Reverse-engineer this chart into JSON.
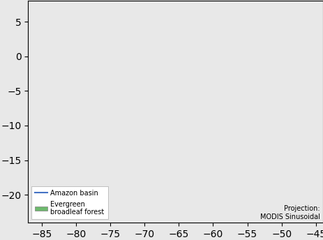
{
  "projection_label": "Projection:\nMODIS Sinusoidal",
  "background_color": "#e8e8e8",
  "land_color": "#c8c8c8",
  "forest_color": "#6db96d",
  "basin_color": "#4472c4",
  "grid_color": "#555555",
  "grid_linewidth": 0.7,
  "lon_labels": [
    "80°W",
    "70°W",
    "60°W",
    "50°W"
  ],
  "lon_values": [
    -80,
    -70,
    -60,
    -50
  ],
  "lat_labels": [
    "0°",
    "10°S",
    "20°S"
  ],
  "lat_values": [
    0,
    -10,
    -20
  ],
  "figsize": [
    4.64,
    3.44
  ],
  "dpi": 100
}
